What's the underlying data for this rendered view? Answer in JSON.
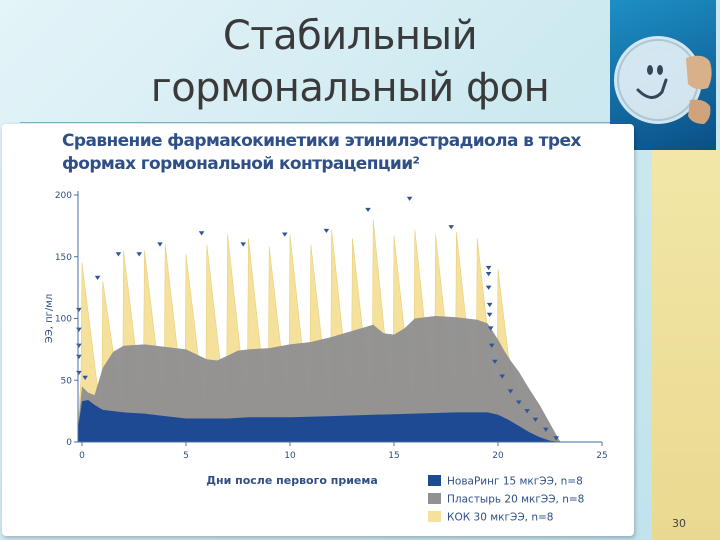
{
  "slide": {
    "title": "Стабильный гормональный фон",
    "page_number": "30"
  },
  "colors": {
    "novaring": "#1e4a94",
    "patch": "#919191",
    "coc": "#f5e19b",
    "marker": "#2f5597",
    "axis_text": "#2f4f86"
  },
  "chart_data": {
    "type": "area",
    "title": "Сравнение фармакокинетики этинилэстрадиола в трех формах гормональной контрацепции²",
    "xlabel": "Дни после первого приема",
    "ylabel": "ЭЭ, пг/мл",
    "xlim": [
      -0.3,
      25
    ],
    "ylim": [
      0,
      200
    ],
    "x_ticks": [
      0,
      5,
      10,
      15,
      20,
      25
    ],
    "y_ticks": [
      0,
      50,
      100,
      150,
      200
    ],
    "grid": false,
    "legend_position": "bottom-right",
    "series": [
      {
        "name": "НоваРинг 15 мкгЭЭ, n=8",
        "x": [
          -0.2,
          0,
          0.3,
          0.6,
          1,
          2,
          3,
          4,
          5,
          6,
          7,
          8,
          10,
          12,
          14,
          16,
          18,
          19.5,
          20,
          20.5,
          21,
          21.5,
          22,
          22.5,
          23
        ],
        "values": [
          10,
          33,
          34,
          30,
          26,
          24,
          23,
          21,
          19,
          19,
          19,
          20,
          20,
          21,
          22,
          23,
          24,
          24,
          22,
          18,
          13,
          8,
          4,
          1,
          0
        ]
      },
      {
        "name": "Пластырь 20 мкгЭЭ, n=8",
        "x": [
          -0.2,
          0,
          0.3,
          0.6,
          1,
          1.5,
          2,
          3,
          4,
          5,
          6,
          6.5,
          7,
          7.5,
          8,
          9,
          10,
          11,
          12,
          13,
          14,
          14.5,
          15,
          15.5,
          16,
          17,
          18,
          19,
          19.5,
          20,
          20.3,
          20.6,
          21,
          21.5,
          22,
          22.5,
          23
        ],
        "values": [
          10,
          45,
          40,
          38,
          60,
          73,
          78,
          79,
          77,
          75,
          67,
          66,
          70,
          74,
          75,
          76,
          79,
          81,
          85,
          90,
          95,
          88,
          87,
          92,
          100,
          102,
          101,
          99,
          96,
          83,
          74,
          66,
          57,
          43,
          30,
          15,
          0
        ]
      },
      {
        "name": "КОК 30 мкгЭЭ, n=8",
        "peak_days": [
          0,
          1,
          2,
          3,
          4,
          5,
          6,
          7,
          8,
          9,
          10,
          11,
          12,
          13,
          14,
          15,
          16,
          17,
          18,
          19,
          20
        ],
        "peak_values": [
          145,
          130,
          155,
          155,
          160,
          152,
          160,
          168,
          165,
          158,
          168,
          160,
          172,
          165,
          180,
          167,
          172,
          168,
          170,
          165,
          140
        ],
        "trough_days": [
          0.85,
          1.85,
          2.85,
          3.85,
          4.85,
          5.85,
          6.85,
          7.85,
          8.85,
          9.85,
          10.85,
          11.85,
          12.85,
          13.85,
          14.85,
          15.85,
          16.85,
          17.85,
          18.85,
          19.85
        ],
        "trough_values": [
          30,
          33,
          36,
          36,
          36,
          33,
          35,
          36,
          34,
          34,
          35,
          34,
          36,
          36,
          36,
          36,
          37,
          37,
          38,
          38
        ],
        "tail_x": [
          20,
          20.5,
          21,
          21.5,
          22,
          22.5,
          23
        ],
        "tail_values": [
          140,
          70,
          42,
          28,
          16,
          7,
          0
        ]
      }
    ],
    "markers": {
      "x": [
        -0.15,
        -0.15,
        -0.15,
        -0.15,
        -0.15,
        0.15,
        0.75,
        1.75,
        2.75,
        3.75,
        5.75,
        7.75,
        9.75,
        11.75,
        13.75,
        15.75,
        17.75,
        19.55,
        19.55,
        19.55,
        19.6,
        19.6,
        19.65,
        19.7,
        19.85,
        20.2,
        20.6,
        21,
        21.4,
        21.8,
        22.3,
        22.8
      ],
      "y": [
        107,
        91,
        78,
        69,
        56,
        52,
        133,
        152,
        152,
        160,
        169,
        160,
        168,
        171,
        188,
        197,
        174,
        141,
        136,
        125,
        111,
        103,
        92,
        78,
        65,
        53,
        41,
        32,
        25,
        18,
        10,
        3
      ]
    }
  }
}
